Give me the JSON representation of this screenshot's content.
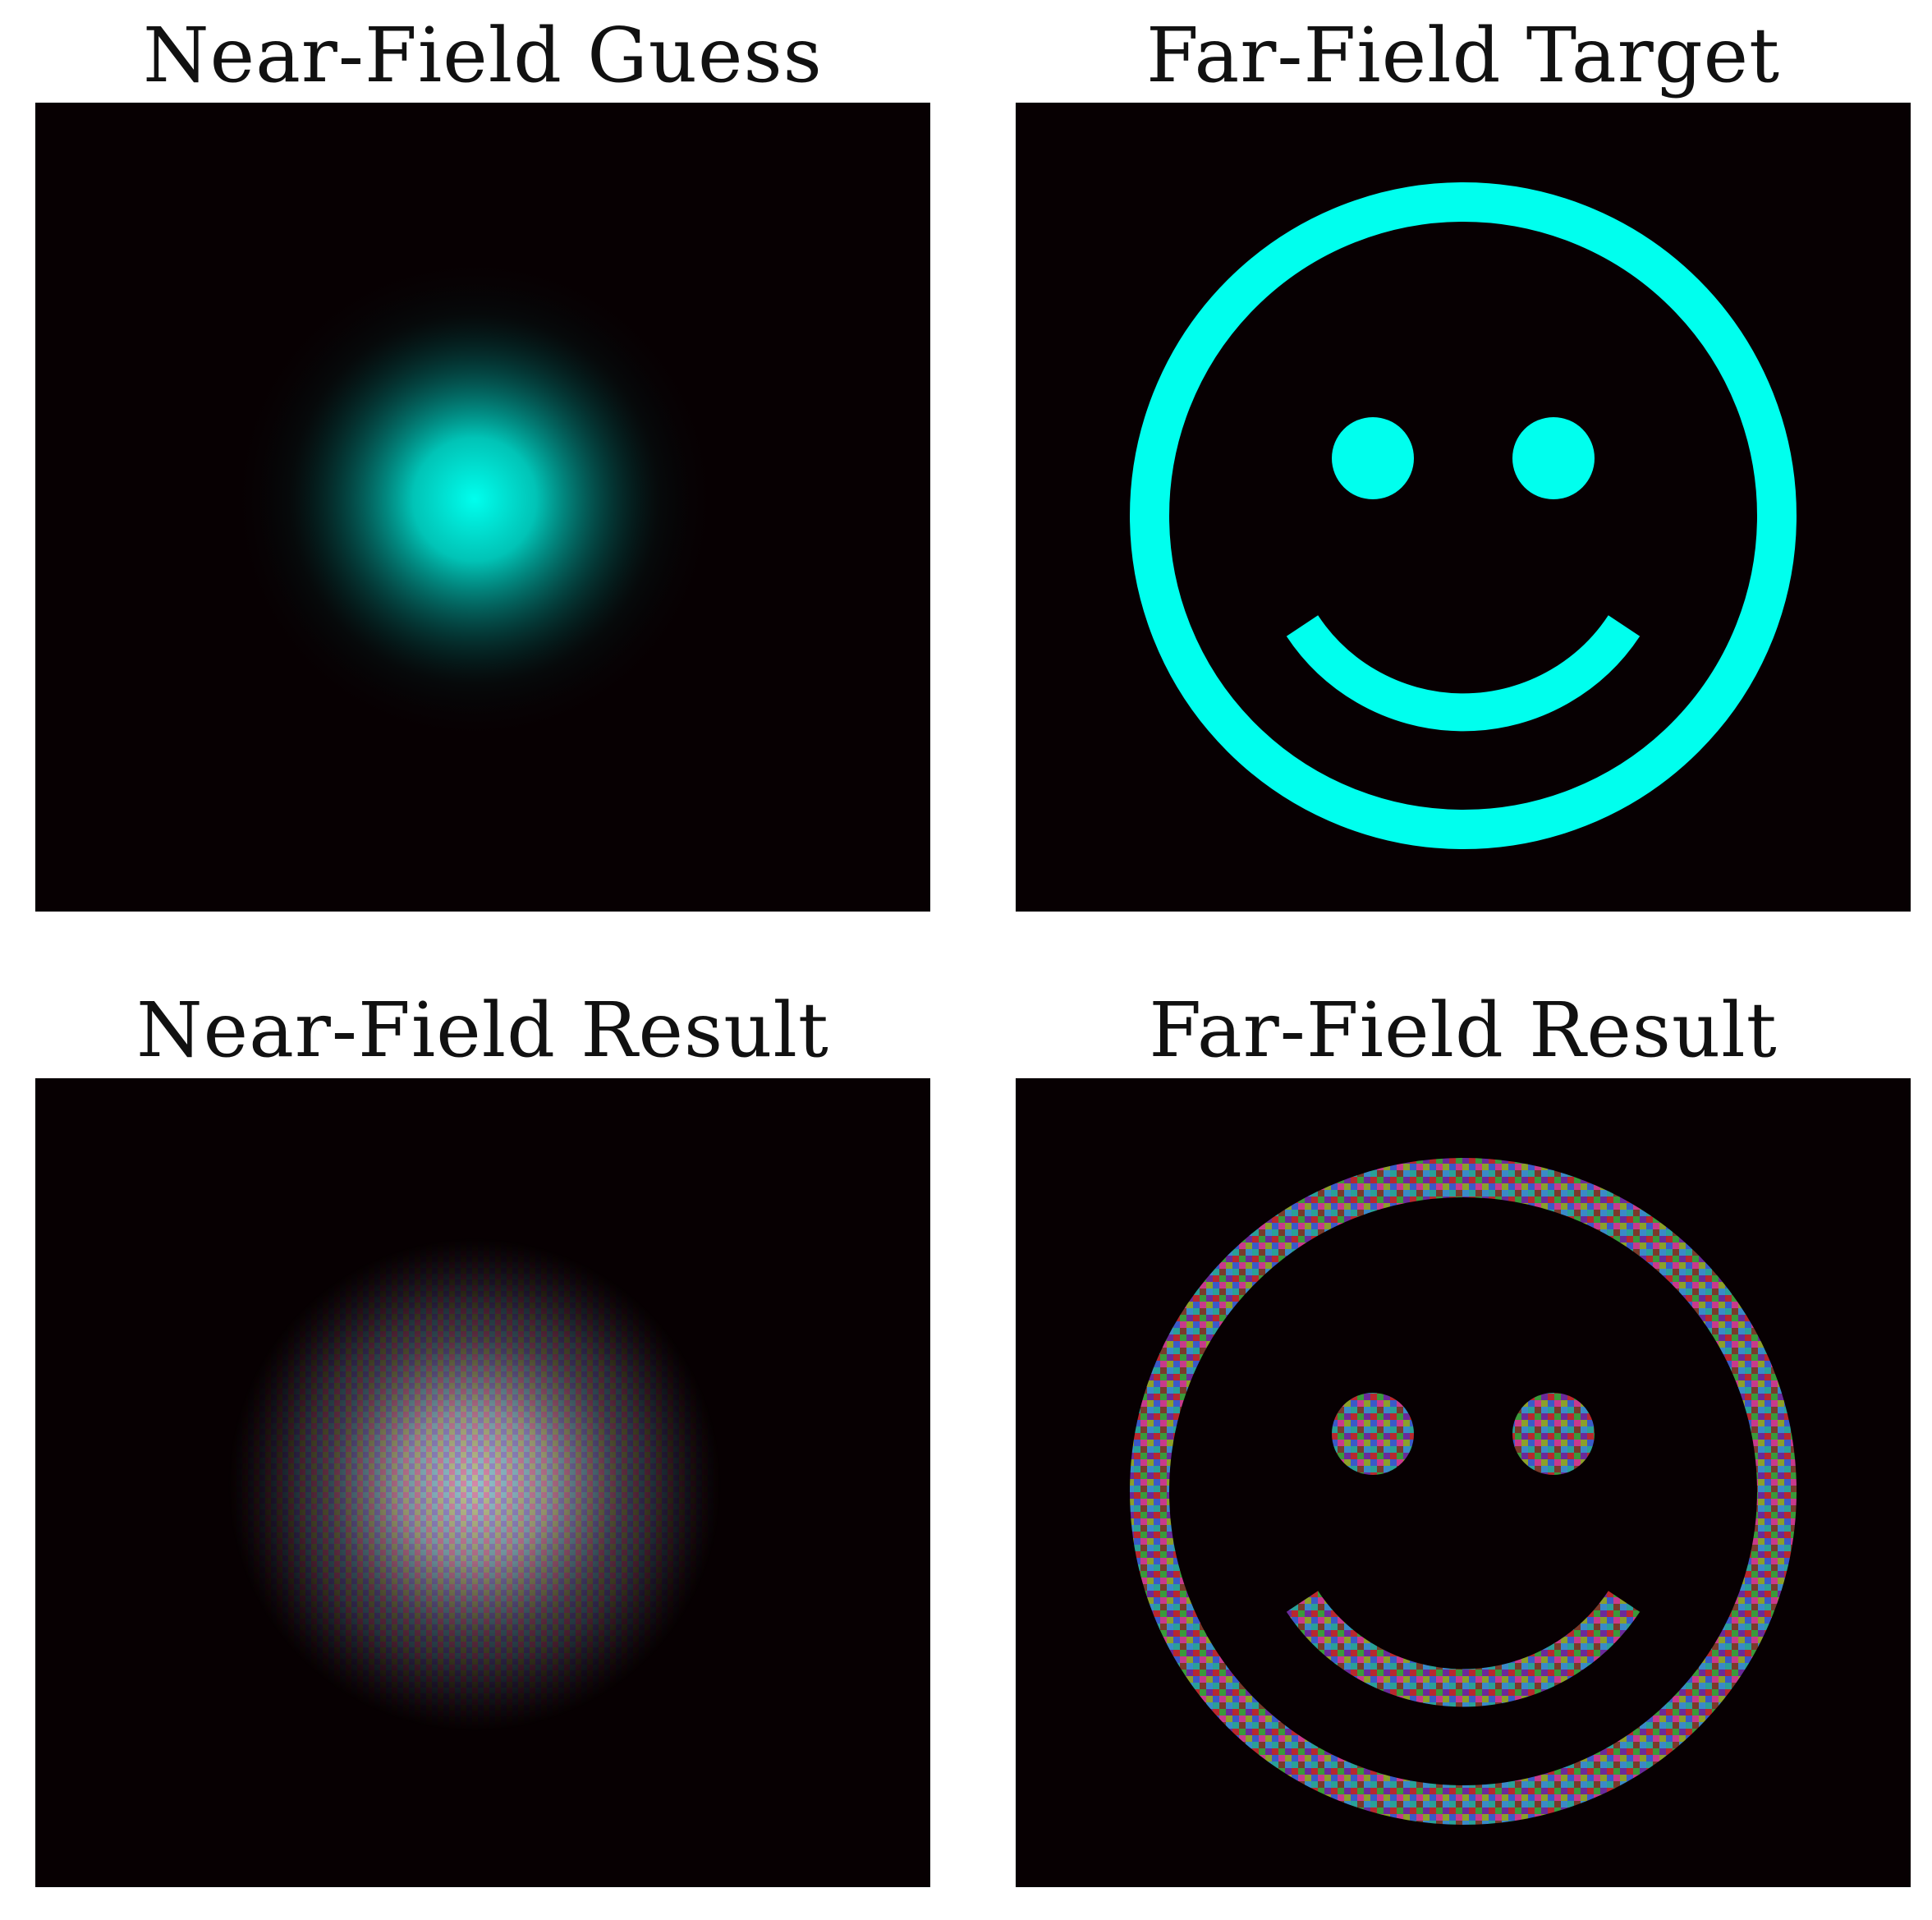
{
  "panels": [
    {
      "title": "Near-Field Guess"
    },
    {
      "title": "Far-Field Target"
    },
    {
      "title": "Near-Field Result"
    },
    {
      "title": "Far-Field Result"
    }
  ],
  "colors": {
    "background": "#070002",
    "cyan": "#00ffee",
    "page": "#ffffff"
  }
}
